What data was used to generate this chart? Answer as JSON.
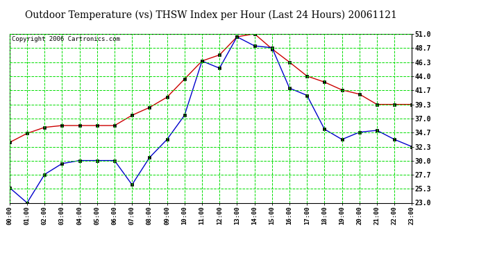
{
  "title": "Outdoor Temperature (vs) THSW Index per Hour (Last 24 Hours) 20061121",
  "copyright": "Copyright 2006 Cartronics.com",
  "hours": [
    "00:00",
    "01:00",
    "02:00",
    "03:00",
    "04:00",
    "05:00",
    "06:00",
    "07:00",
    "08:00",
    "09:00",
    "10:00",
    "11:00",
    "12:00",
    "13:00",
    "14:00",
    "15:00",
    "16:00",
    "17:00",
    "18:00",
    "19:00",
    "20:00",
    "21:00",
    "22:00",
    "23:00"
  ],
  "temp_red": [
    33.0,
    34.5,
    35.5,
    35.8,
    35.8,
    35.8,
    35.8,
    37.5,
    38.8,
    40.5,
    43.5,
    46.5,
    47.5,
    50.5,
    51.0,
    48.5,
    46.3,
    44.0,
    43.0,
    41.7,
    41.0,
    39.3,
    39.3,
    39.3
  ],
  "thsw_blue": [
    25.5,
    23.0,
    27.7,
    29.5,
    30.0,
    30.0,
    30.0,
    26.0,
    30.5,
    33.5,
    37.5,
    46.5,
    45.3,
    50.5,
    49.0,
    48.7,
    42.0,
    40.8,
    35.2,
    33.5,
    34.7,
    35.0,
    33.5,
    32.3
  ],
  "ylim": [
    23.0,
    51.0
  ],
  "yticks": [
    23.0,
    25.3,
    27.7,
    30.0,
    32.3,
    34.7,
    37.0,
    39.3,
    41.7,
    44.0,
    46.3,
    48.7,
    51.0
  ],
  "background_color": "#ffffff",
  "grid_color": "#00dd00",
  "line_color_red": "#cc0000",
  "line_color_blue": "#0000cc",
  "title_color": "#000000",
  "title_fontsize": 10,
  "copyright_fontsize": 6.5
}
